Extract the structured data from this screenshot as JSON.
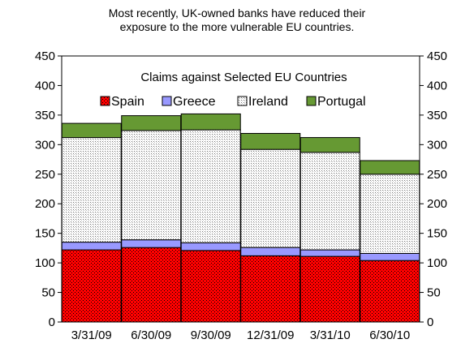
{
  "title_line1": "Most recently, UK-owned banks have reduced their",
  "title_line2": "exposure to the more vulnerable EU countries.",
  "chart_data": {
    "type": "bar",
    "stacked": true,
    "subtitle": "Claims against Selected EU Countries",
    "categories": [
      "3/31/09",
      "6/30/09",
      "9/30/09",
      "12/31/09",
      "3/31/10",
      "6/30/10"
    ],
    "series": [
      {
        "name": "Spain",
        "values": [
          122,
          126,
          121,
          112,
          111,
          104
        ],
        "color": "#ff0000"
      },
      {
        "name": "Greece",
        "values": [
          13,
          13,
          13,
          14,
          11,
          12
        ],
        "color": "#9999ff"
      },
      {
        "name": "Ireland",
        "values": [
          177,
          185,
          191,
          166,
          165,
          134
        ],
        "color": "#d9d9d9"
      },
      {
        "name": "Portugal",
        "values": [
          24,
          25,
          27,
          27,
          25,
          23
        ],
        "color": "#669933"
      }
    ],
    "ylim": [
      0,
      450
    ],
    "yticks": [
      0,
      50,
      100,
      150,
      200,
      250,
      300,
      350,
      400,
      450
    ],
    "y_axis_both_sides": true,
    "grid": false,
    "legend_placement": "top"
  }
}
